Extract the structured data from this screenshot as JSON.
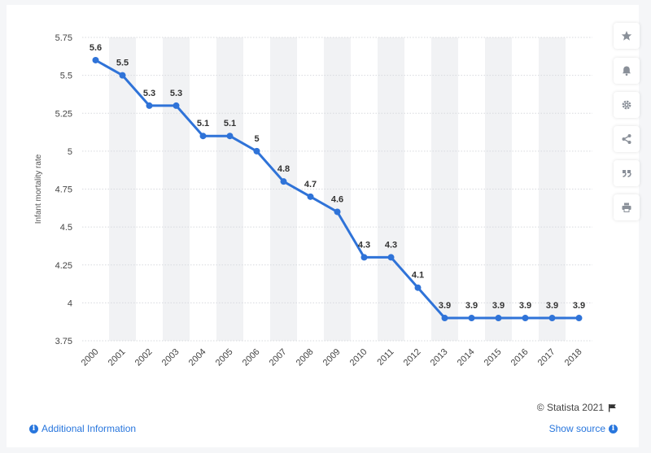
{
  "chart_data": {
    "type": "line",
    "title": "",
    "xlabel": "",
    "ylabel": "Infant mortality rate",
    "categories": [
      "2000",
      "2001",
      "2002",
      "2003",
      "2004",
      "2005",
      "2006",
      "2007",
      "2008",
      "2009",
      "2010",
      "2011",
      "2012",
      "2013",
      "2014",
      "2015",
      "2016",
      "2017",
      "2018"
    ],
    "series": [
      {
        "values": [
          5.6,
          5.5,
          5.3,
          5.3,
          5.1,
          5.1,
          5,
          4.8,
          4.7,
          4.6,
          4.3,
          4.3,
          4.1,
          3.9,
          3.9,
          3.9,
          3.9,
          3.9,
          3.9
        ]
      }
    ],
    "value_labels": [
      "5.6",
      "5.5",
      "5.3",
      "5.3",
      "5.1",
      "5.1",
      "5",
      "4.8",
      "4.7",
      "4.6",
      "4.3",
      "4.3",
      "4.1",
      "3.9",
      "3.9",
      "3.9",
      "3.9",
      "3.9",
      "3.9"
    ],
    "yticks": [
      "3.75",
      "4",
      "4.25",
      "4.5",
      "4.75",
      "5",
      "5.25",
      "5.5",
      "5.75"
    ],
    "ylim": [
      3.75,
      5.75
    ],
    "grid": true,
    "colors": {
      "line": "#2f73d8",
      "band": "#f1f2f4",
      "grid": "#d7d9de"
    }
  },
  "toolbar": {
    "buttons": [
      "star-icon",
      "bell-icon",
      "gear-icon",
      "share-icon",
      "quote-icon",
      "print-icon"
    ]
  },
  "footer": {
    "credit": "© Statista 2021",
    "additional_info": "Additional Information",
    "show_source": "Show source"
  }
}
